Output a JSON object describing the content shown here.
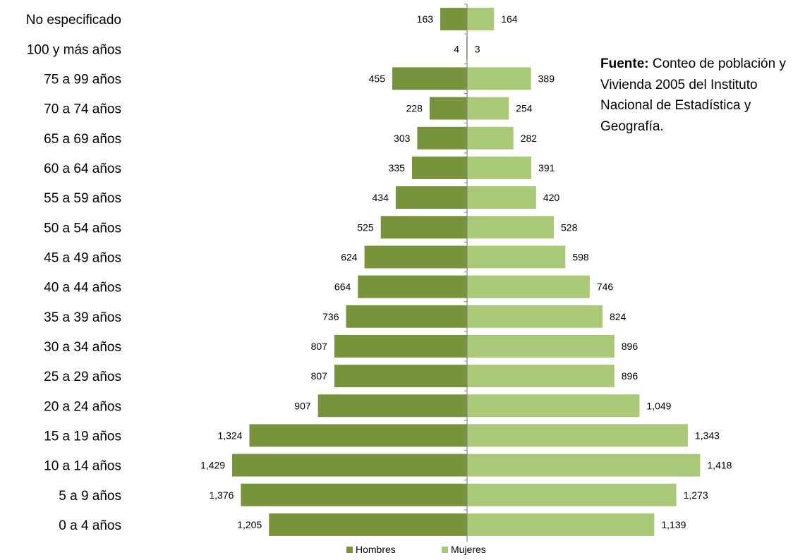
{
  "chart_data": {
    "type": "bar",
    "orientation": "horizontal-population-pyramid",
    "categories": [
      "No especificado",
      "100 y más años",
      "75 a 99 años",
      "70 a 74 años",
      "65 a 69 años",
      "60 a 64 años",
      "55 a 59 años",
      "50 a 54 años",
      "45 a 49 años",
      "40 a 44 años",
      "35 a 39 años",
      "30 a 34 años",
      "25 a 29 años",
      "20 a 24 años",
      "15 a 19 años",
      "10 a 14 años",
      "5 a 9 años",
      "0 a 4 años"
    ],
    "series": [
      {
        "name": "Hombres",
        "color": "#77933c",
        "side": "left",
        "values": [
          163,
          4,
          455,
          228,
          303,
          335,
          434,
          525,
          624,
          664,
          736,
          807,
          807,
          907,
          1324,
          1429,
          1376,
          1205
        ],
        "labels": [
          "163",
          "4",
          "455",
          "228",
          "303",
          "335",
          "434",
          "525",
          "624",
          "664",
          "736",
          "807",
          "807",
          "907",
          "1,324",
          "1,429",
          "1,376",
          "1,205"
        ]
      },
      {
        "name": "Mujeres",
        "color": "#a9c878",
        "side": "right",
        "values": [
          164,
          3,
          389,
          254,
          282,
          391,
          420,
          528,
          598,
          746,
          824,
          896,
          896,
          1049,
          1343,
          1418,
          1273,
          1139
        ],
        "labels": [
          "164",
          "3",
          "389",
          "254",
          "282",
          "391",
          "420",
          "528",
          "598",
          "746",
          "824",
          "896",
          "896",
          "1,049",
          "1,343",
          "1,418",
          "1,273",
          "1,139"
        ]
      }
    ],
    "legend_position": "bottom",
    "grid": false
  },
  "source_note": {
    "label": "Fuente:",
    "text": " Conteo de población y Vivienda 2005 del Instituto Nacional de Estadística y Geografía."
  }
}
